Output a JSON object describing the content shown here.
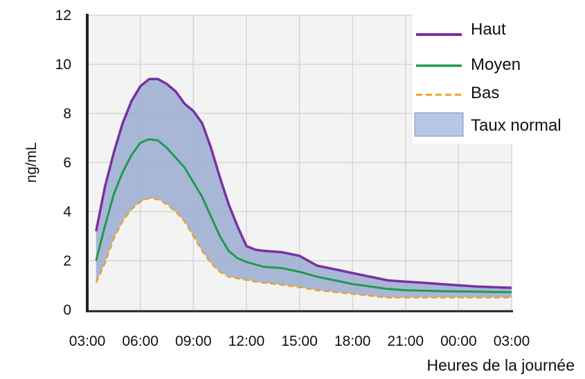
{
  "chart_data": {
    "type": "area",
    "title": "",
    "xlabel": "Heures de la journée",
    "ylabel": "ng/mL",
    "ylim": [
      0,
      12
    ],
    "xlim": [
      0,
      24
    ],
    "grid": true,
    "legend_position": "top-right",
    "x_ticks": [
      "03:00",
      "06:00",
      "09:00",
      "12:00",
      "15:00",
      "18:00",
      "21:00",
      "00:00",
      "03:00"
    ],
    "y_ticks": [
      "0",
      "2",
      "4",
      "6",
      "8",
      "10",
      "12"
    ],
    "x_hours_after_03h": [
      0.5,
      1.0,
      1.5,
      2.0,
      2.5,
      3.0,
      3.5,
      4.0,
      4.5,
      5.0,
      5.5,
      6.0,
      6.5,
      7.0,
      7.5,
      8.0,
      8.5,
      9.0,
      9.5,
      10.0,
      11.0,
      12.0,
      13.0,
      14.0,
      15.0,
      16.0,
      17.0,
      18.0,
      19.0,
      20.0,
      21.0,
      22.0,
      23.0,
      24.0
    ],
    "series": [
      {
        "name": "Haut",
        "color": "#7a2fa3",
        "values": [
          3.2,
          5.0,
          6.4,
          7.6,
          8.5,
          9.1,
          9.4,
          9.4,
          9.2,
          8.9,
          8.4,
          8.1,
          7.6,
          6.6,
          5.4,
          4.3,
          3.4,
          2.6,
          2.45,
          2.4,
          2.35,
          2.2,
          1.8,
          1.65,
          1.5,
          1.35,
          1.2,
          1.15,
          1.1,
          1.05,
          1.0,
          0.95,
          0.92,
          0.9
        ]
      },
      {
        "name": "Moyen",
        "color": "#1e9a4e",
        "values": [
          2.0,
          3.4,
          4.7,
          5.6,
          6.3,
          6.8,
          6.95,
          6.9,
          6.6,
          6.2,
          5.8,
          5.2,
          4.6,
          3.8,
          3.0,
          2.4,
          2.1,
          1.95,
          1.85,
          1.75,
          1.7,
          1.55,
          1.35,
          1.2,
          1.05,
          0.95,
          0.85,
          0.8,
          0.78,
          0.76,
          0.75,
          0.74,
          0.73,
          0.72
        ]
      },
      {
        "name": "Bas",
        "color": "#f0a020",
        "values": [
          1.1,
          1.9,
          2.9,
          3.6,
          4.1,
          4.4,
          4.55,
          4.5,
          4.3,
          4.0,
          3.6,
          3.0,
          2.4,
          1.9,
          1.55,
          1.35,
          1.28,
          1.22,
          1.15,
          1.1,
          1.02,
          0.92,
          0.8,
          0.72,
          0.65,
          0.57,
          0.5,
          0.5,
          0.5,
          0.5,
          0.5,
          0.5,
          0.5,
          0.5
        ]
      }
    ],
    "band": {
      "name": "Taux normal",
      "fill_color": "#9daed0",
      "upper_series": "Haut",
      "lower_series": "Bas"
    }
  }
}
